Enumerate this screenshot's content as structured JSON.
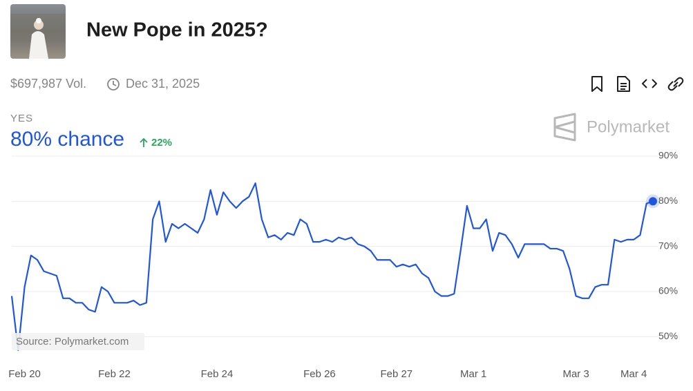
{
  "header": {
    "title": "New Pope in 2025?",
    "volume": "$697,987 Vol.",
    "end_date": "Dec 31, 2025"
  },
  "outcome": {
    "label": "YES",
    "chance": "80% chance",
    "change": "22%"
  },
  "brand": "Polymarket",
  "source": "Source: Polymarket.com",
  "chart_data": {
    "type": "line",
    "color": "#1f55e0",
    "grid": true,
    "categories": [
      null,
      null,
      "Feb 20",
      null,
      null,
      null,
      null,
      null,
      null,
      null,
      null,
      null,
      null,
      null,
      null,
      null,
      "Feb 22",
      null,
      null,
      null,
      null,
      null,
      null,
      null,
      null,
      null,
      null,
      null,
      null,
      null,
      null,
      null,
      "Feb 24",
      null,
      null,
      null,
      null,
      null,
      null,
      null,
      null,
      null,
      null,
      null,
      null,
      null,
      null,
      null,
      "Feb 26",
      null,
      null,
      null,
      null,
      null,
      null,
      null,
      null,
      null,
      null,
      null,
      "Feb 27",
      null,
      null,
      null,
      null,
      null,
      null,
      null,
      null,
      null,
      null,
      null,
      "Mar 1",
      null,
      null,
      null,
      null,
      null,
      null,
      null,
      null,
      null,
      null,
      null,
      null,
      null,
      null,
      null,
      "Mar 3",
      null,
      null,
      null,
      null,
      null,
      null,
      null,
      null,
      "Mar 4",
      null,
      null,
      null
    ],
    "values": [
      59,
      47,
      61,
      68,
      67,
      64.5,
      64,
      63.5,
      58.5,
      58.5,
      57.5,
      57.5,
      56,
      55.5,
      61,
      60,
      57.5,
      57.5,
      57.5,
      58,
      57,
      57.5,
      76,
      80,
      71,
      75,
      74,
      75,
      74,
      73,
      76,
      82.5,
      77,
      82,
      80,
      78.5,
      80,
      81,
      84,
      76,
      72,
      72.5,
      71.5,
      73,
      72.5,
      76,
      75,
      71,
      71,
      71.5,
      71,
      72,
      71.5,
      72,
      70.5,
      70,
      69,
      67,
      67,
      67,
      65.5,
      66,
      65.5,
      66,
      64,
      63,
      60,
      59,
      59,
      59.5,
      69,
      79,
      74,
      74,
      76,
      69,
      73,
      72.5,
      70.5,
      67.5,
      70.5,
      70.5,
      70.5,
      70.5,
      69.5,
      69.5,
      69,
      65,
      59,
      58.5,
      58.5,
      61,
      61.5,
      61.5,
      71.5,
      71,
      71.5,
      71.5,
      72.5,
      79.5,
      80
    ],
    "ylim": [
      45,
      90
    ],
    "yticks": [
      {
        "value": 50,
        "label": "50%"
      },
      {
        "value": 60,
        "label": "60%"
      },
      {
        "value": 70,
        "label": "70%"
      },
      {
        "value": 80,
        "label": "80%"
      },
      {
        "value": 90,
        "label": "90%"
      }
    ]
  }
}
